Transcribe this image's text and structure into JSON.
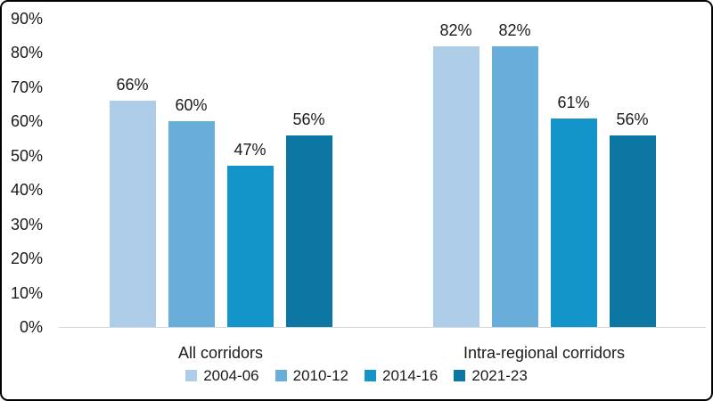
{
  "frame": {
    "background": "#FFFFFF",
    "border_color": "#000000",
    "text_color": "#1A1A1A"
  },
  "chart_data": {
    "type": "bar",
    "title": "",
    "xlabel": "",
    "ylabel": "",
    "categories": [
      "All corridors",
      "Intra-regional corridors"
    ],
    "series": [
      {
        "name": "2004-06",
        "color": "#AECDE8",
        "values": [
          66,
          82
        ],
        "labels": [
          "66%",
          "82%"
        ]
      },
      {
        "name": "2010-12",
        "color": "#69AEDB",
        "values": [
          60,
          82
        ],
        "labels": [
          "60%",
          "82%"
        ]
      },
      {
        "name": "2014-16",
        "color": "#1495C9",
        "values": [
          47,
          61
        ],
        "labels": [
          "47%",
          "61%"
        ]
      },
      {
        "name": "2021-23",
        "color": "#0D77A4",
        "values": [
          56,
          56
        ],
        "labels": [
          "56%",
          "56%"
        ]
      }
    ],
    "ylim": [
      0,
      90
    ],
    "yticks": [
      {
        "value": 0,
        "label": "0%"
      },
      {
        "value": 10,
        "label": "10%"
      },
      {
        "value": 20,
        "label": "20%"
      },
      {
        "value": 30,
        "label": "30%"
      },
      {
        "value": 40,
        "label": "40%"
      },
      {
        "value": 50,
        "label": "50%"
      },
      {
        "value": 60,
        "label": "60%"
      },
      {
        "value": 70,
        "label": "70%"
      },
      {
        "value": 80,
        "label": "80%"
      },
      {
        "value": 90,
        "label": "90%"
      }
    ],
    "grid": false,
    "legend_position": "bottom",
    "axis_line_color": "#D9D9D9"
  }
}
